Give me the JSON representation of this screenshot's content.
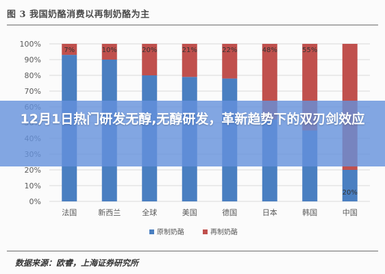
{
  "figure_title": "图 3 我国奶酪消费以再制奶酪为主",
  "source_note": "数据来源：欧睿，上海证券研究所",
  "headline": "12月1日热门研发无醇,无醇研发，革新趋势下的双刃剑效应",
  "colors": {
    "series_0": "#4a7fc1",
    "series_1": "#c0504d",
    "grid": "#d9d9d9",
    "axis_text": "#595959"
  },
  "chart_data": {
    "type": "bar",
    "stacked": true,
    "categories": [
      "法国",
      "新西兰",
      "全球",
      "美国",
      "德国",
      "日本",
      "韩国",
      "中国"
    ],
    "series": [
      {
        "name": "原制奶酪",
        "values": [
          93,
          90,
          80,
          79,
          78,
          52,
          45,
          20
        ]
      },
      {
        "name": "再制奶酪",
        "values": [
          7,
          10,
          20,
          21,
          22,
          48,
          55,
          80
        ]
      }
    ],
    "data_labels": [
      [
        null,
        null,
        null,
        null,
        null,
        null,
        null,
        "20%"
      ],
      [
        "7%",
        "10%",
        "20%",
        "21%",
        "22%",
        "48%",
        "55%",
        null
      ]
    ],
    "y_ticks": [
      "0%",
      "10%",
      "20%",
      "30%",
      "40%",
      "50%",
      "60%",
      "70%",
      "80%",
      "90%",
      "100%"
    ],
    "ylim": [
      0,
      100
    ],
    "grid": true,
    "legend_position": "bottom"
  }
}
